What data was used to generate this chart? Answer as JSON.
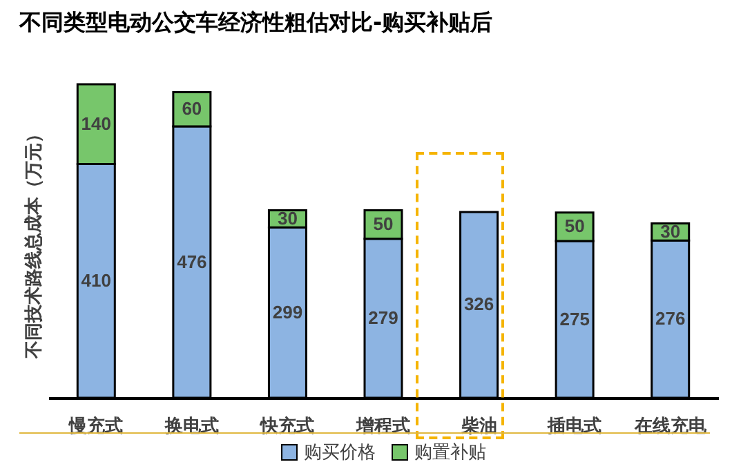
{
  "chart_data": {
    "type": "bar",
    "title": "不同类型电动公交车经济性粗估对比-购买补贴后",
    "ylabel": "不同技术路线总成本（万元）",
    "categories": [
      "慢充式",
      "换电式",
      "快充式",
      "增程式",
      "柴油",
      "插电式",
      "在线充电"
    ],
    "stacked": true,
    "data_labels": true,
    "legend": "bottom",
    "series": [
      {
        "name": "购买价格",
        "color": "#8db4e2",
        "values": [
          410,
          476,
          299,
          279,
          326,
          275,
          276
        ]
      },
      {
        "name": "购置补贴",
        "color": "#77c66b",
        "values": [
          140,
          60,
          30,
          50,
          null,
          50,
          30
        ]
      }
    ]
  }
}
